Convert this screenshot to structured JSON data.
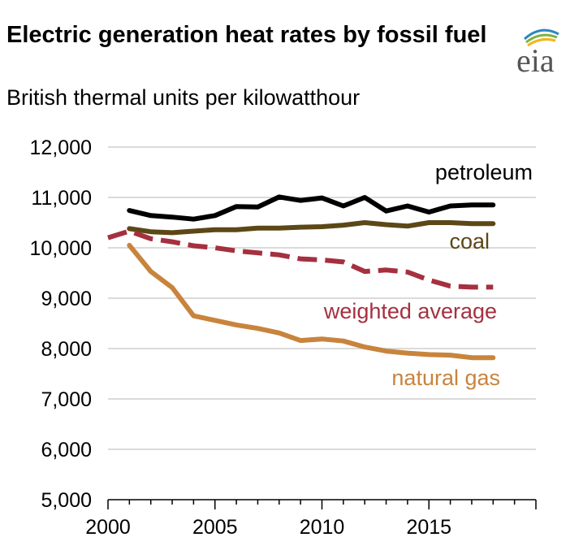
{
  "header": {
    "title": "Electric generation heat rates by fossil fuel",
    "subtitle": "British thermal units per kilowatthour",
    "logo_text": "eia"
  },
  "chart_data": {
    "type": "line",
    "title": "Electric generation heat rates by fossil fuel",
    "subtitle": "British thermal units per kilowatthour",
    "xlabel": "",
    "ylabel": "",
    "xlim": [
      2000,
      2020
    ],
    "ylim": [
      5000,
      12000
    ],
    "grid": true,
    "x_ticks": [
      "2000",
      "2005",
      "2010",
      "2015"
    ],
    "y_ticks": [
      "12,000",
      "11,000",
      "10,000",
      "9,000",
      "8,000",
      "7,000",
      "6,000",
      "5,000"
    ],
    "series": [
      {
        "name": "petroleum",
        "color": "#000000",
        "dashed": false,
        "x": [
          2001,
          2002,
          2003,
          2004,
          2005,
          2006,
          2007,
          2008,
          2009,
          2010,
          2011,
          2012,
          2013,
          2014,
          2015,
          2016,
          2017,
          2018
        ],
        "values": [
          10740,
          10640,
          10610,
          10570,
          10640,
          10820,
          10810,
          11010,
          10940,
          10990,
          10830,
          11000,
          10730,
          10830,
          10710,
          10830,
          10850,
          10850
        ]
      },
      {
        "name": "coal",
        "color": "#5c4716",
        "dashed": false,
        "x": [
          2001,
          2002,
          2003,
          2004,
          2005,
          2006,
          2007,
          2008,
          2009,
          2010,
          2011,
          2012,
          2013,
          2014,
          2015,
          2016,
          2017,
          2018
        ],
        "values": [
          10380,
          10320,
          10300,
          10330,
          10360,
          10360,
          10390,
          10390,
          10410,
          10420,
          10450,
          10500,
          10460,
          10430,
          10500,
          10500,
          10480,
          10480
        ]
      },
      {
        "name": "weighted average",
        "color": "#a5303f",
        "dashed": true,
        "x": [
          2000,
          2001,
          2002,
          2003,
          2004,
          2005,
          2006,
          2007,
          2008,
          2009,
          2010,
          2011,
          2012,
          2013,
          2014,
          2015,
          2016,
          2017,
          2018
        ],
        "values": [
          10200,
          10330,
          10180,
          10120,
          10040,
          10000,
          9940,
          9900,
          9860,
          9780,
          9760,
          9720,
          9530,
          9560,
          9520,
          9360,
          9240,
          9220,
          9220
        ]
      },
      {
        "name": "natural gas",
        "color": "#c8843d",
        "dashed": false,
        "x": [
          2001,
          2002,
          2003,
          2004,
          2005,
          2006,
          2007,
          2008,
          2009,
          2010,
          2011,
          2012,
          2013,
          2014,
          2015,
          2016,
          2017,
          2018
        ],
        "values": [
          10050,
          9530,
          9210,
          8650,
          8560,
          8470,
          8400,
          8310,
          8160,
          8190,
          8150,
          8030,
          7950,
          7910,
          7880,
          7870,
          7820,
          7820
        ]
      }
    ]
  }
}
